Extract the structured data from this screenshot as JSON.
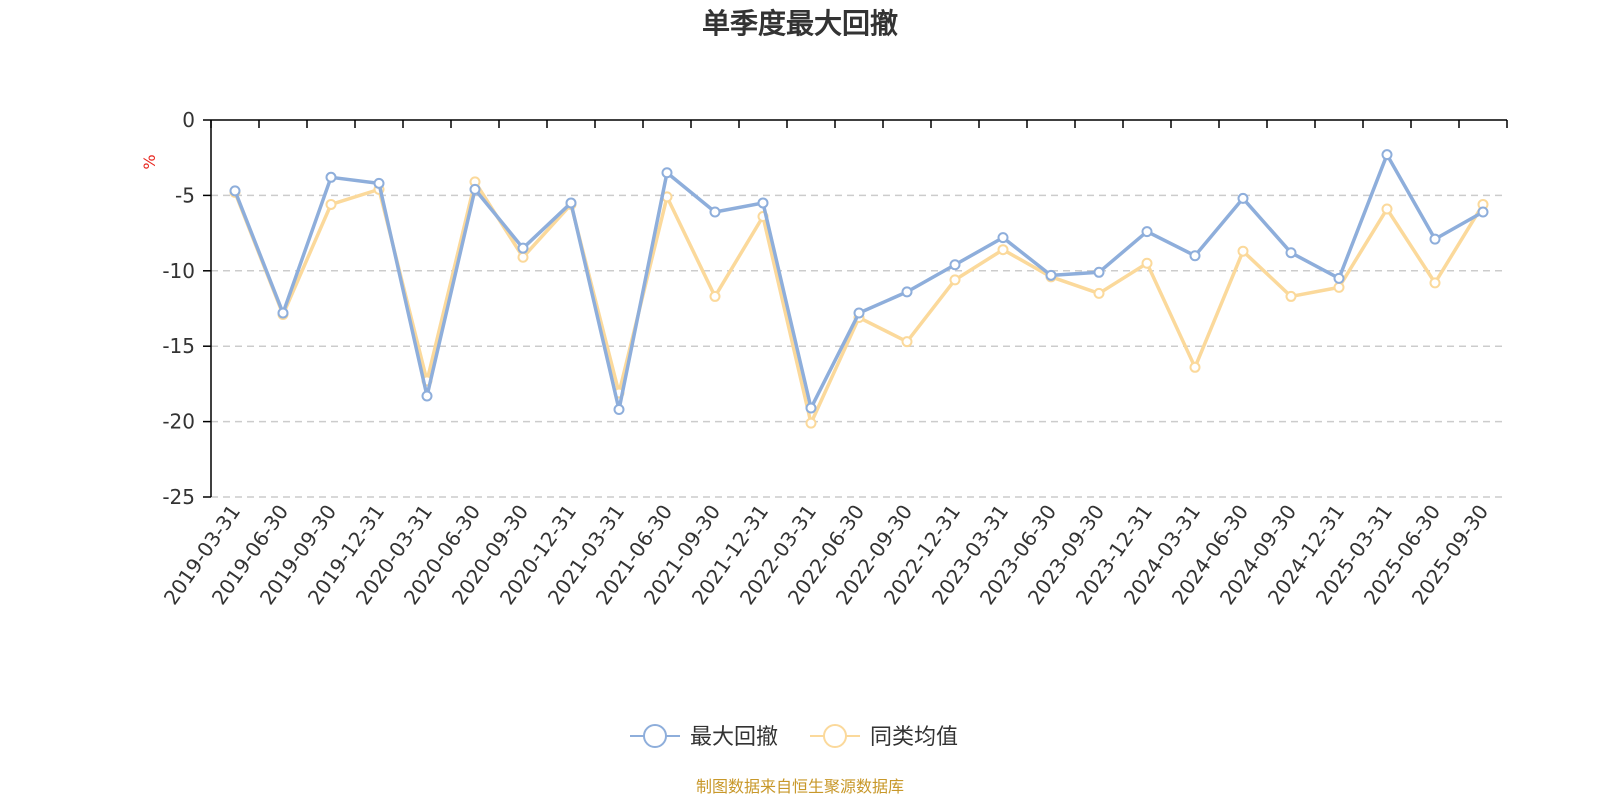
{
  "chart_data": {
    "type": "line",
    "title": "单季度最大回撤",
    "ylabel": "%",
    "ylim": [
      -25,
      0
    ],
    "yticks": [
      0,
      -5,
      -10,
      -15,
      -20,
      -25
    ],
    "grid": "horizontal-dashed",
    "legend_position": "bottom-center",
    "categories": [
      "2019-03-31",
      "2019-06-30",
      "2019-09-30",
      "2019-12-31",
      "2020-03-31",
      "2020-06-30",
      "2020-09-30",
      "2020-12-31",
      "2021-03-31",
      "2021-06-30",
      "2021-09-30",
      "2021-12-31",
      "2022-03-31",
      "2022-06-30",
      "2022-09-30",
      "2022-12-31",
      "2023-03-31",
      "2023-06-30",
      "2023-09-30",
      "2023-12-31",
      "2024-03-31",
      "2024-06-30",
      "2024-09-30",
      "2024-12-31",
      "2025-03-31",
      "2025-06-30",
      "2025-09-30"
    ],
    "series": [
      {
        "name": "最大回撤",
        "color": "#8eaedb",
        "values": [
          -4.7,
          -12.8,
          -3.8,
          -4.2,
          -18.3,
          -4.6,
          -8.5,
          -5.5,
          -19.2,
          -3.5,
          -6.1,
          -5.5,
          -19.1,
          -12.8,
          -11.4,
          -9.6,
          -7.8,
          -10.3,
          -10.1,
          -7.4,
          -9.0,
          -5.2,
          -8.8,
          -10.5,
          -2.3,
          -7.9,
          -6.1
        ]
      },
      {
        "name": "同类均值",
        "color": "#fbd99b",
        "values": [
          -4.8,
          -12.9,
          -5.6,
          -4.6,
          -17.3,
          -4.1,
          -9.1,
          -5.6,
          -18.1,
          -5.1,
          -11.7,
          -6.4,
          -20.1,
          -13.1,
          -14.7,
          -10.6,
          -8.6,
          -10.4,
          -11.5,
          -9.5,
          -16.4,
          -8.7,
          -11.7,
          -11.1,
          -5.9,
          -10.8,
          -5.6
        ]
      }
    ]
  },
  "source": "制图数据来自恒生聚源数据库",
  "colors": {
    "axis": "#000000",
    "grid": "#cccccc",
    "unit": "#e8261f",
    "source": "#c8982a"
  }
}
